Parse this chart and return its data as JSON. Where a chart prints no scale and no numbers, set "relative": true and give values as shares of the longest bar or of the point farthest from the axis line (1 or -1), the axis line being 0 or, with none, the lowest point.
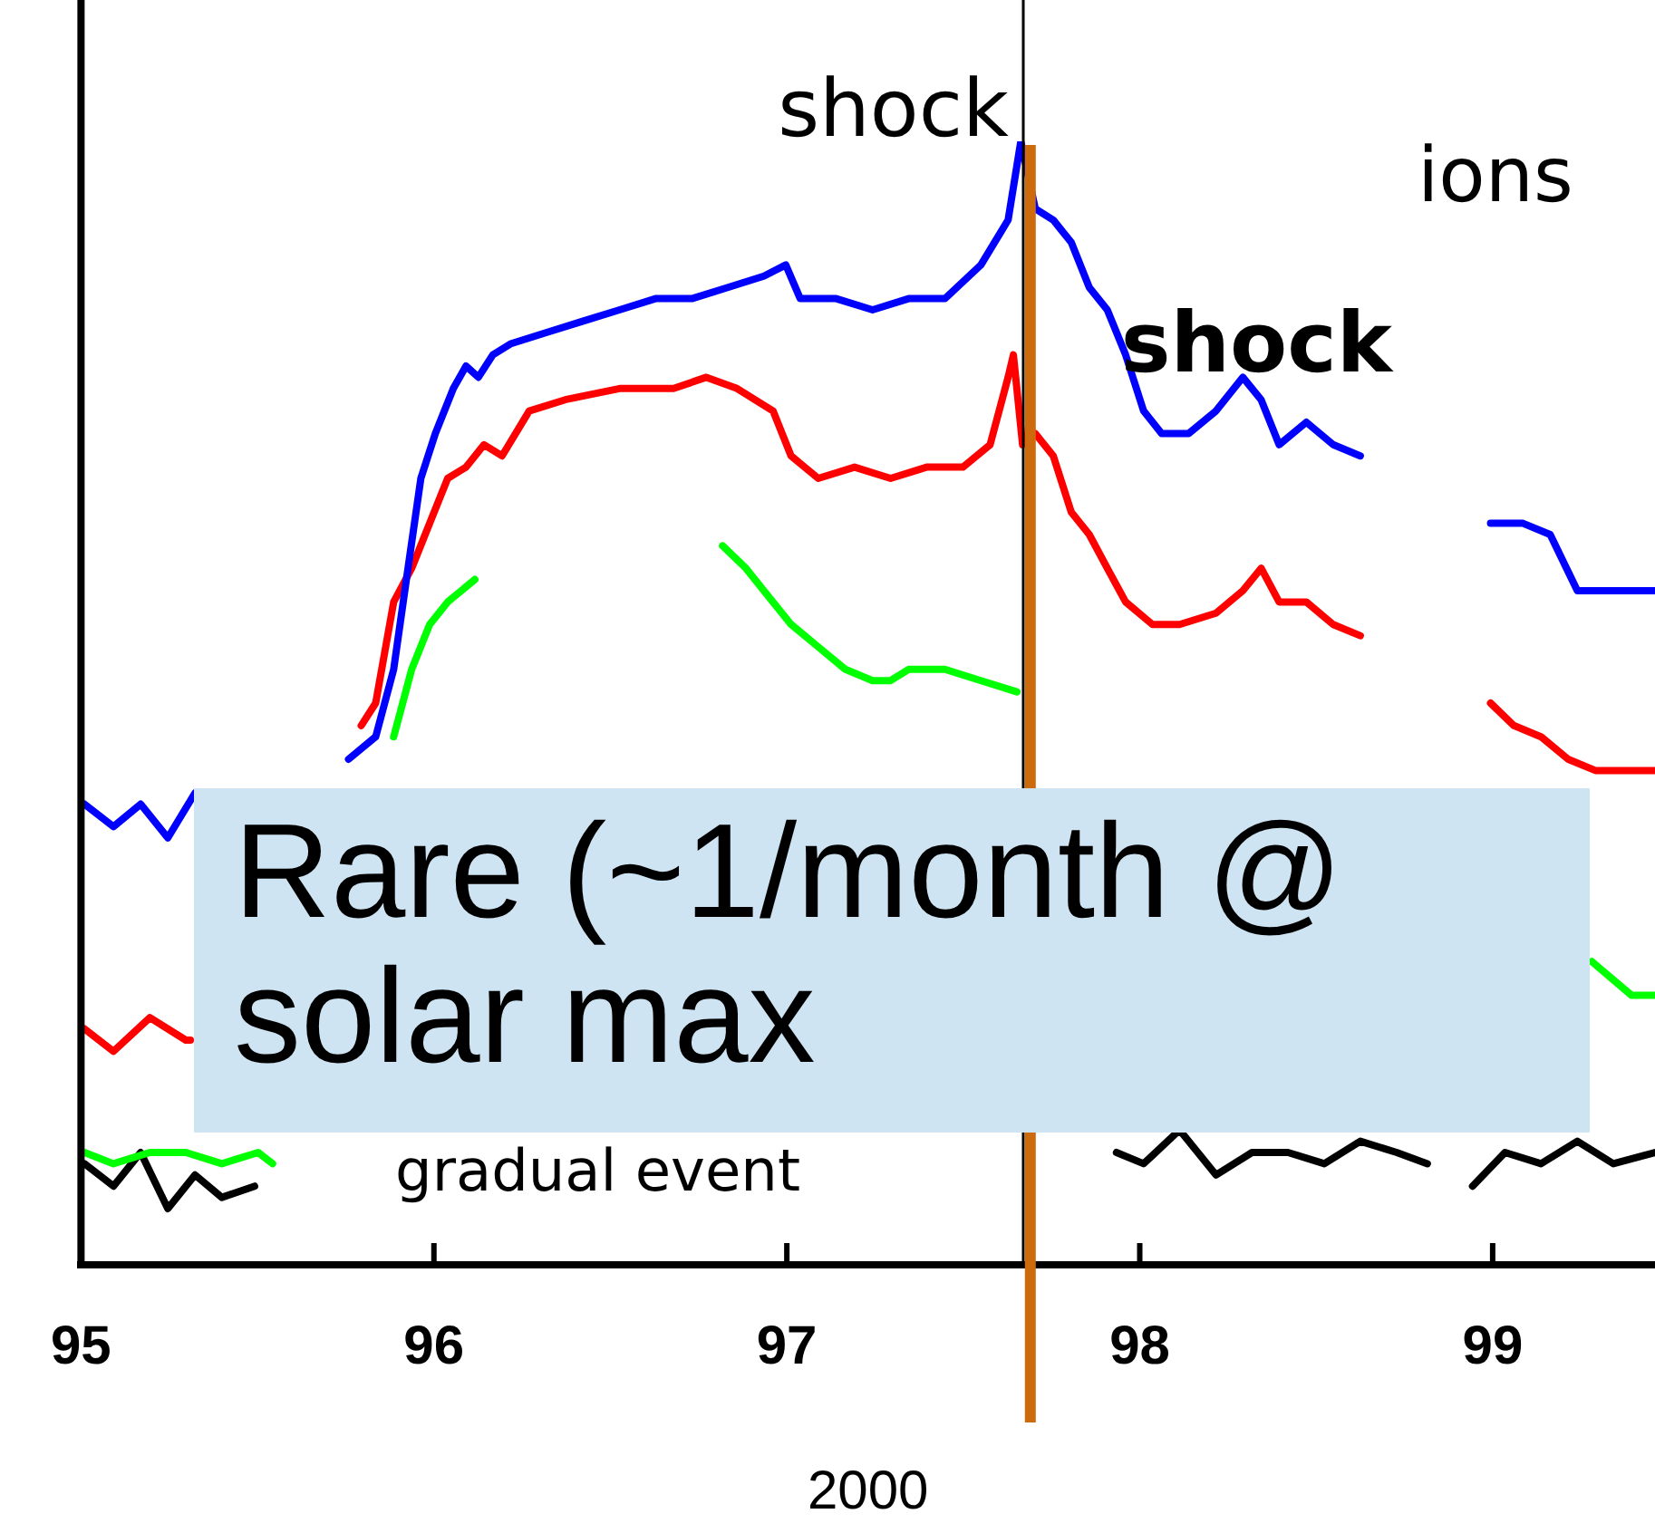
{
  "chart_data": {
    "type": "line",
    "relative": true,
    "marker": "none",
    "xlabel": "2000",
    "xlim": [
      95,
      99.46
    ],
    "xticks": [
      95,
      96,
      97,
      98,
      99
    ],
    "series": [
      {
        "color": "#0000ff",
        "x": [
          95.01,
          95.092,
          95.169,
          95.246,
          95.323,
          95.6,
          95.758,
          95.835,
          95.886,
          95.922,
          95.963,
          96.004,
          96.055,
          96.091,
          96.126,
          96.167,
          96.219,
          96.321,
          96.423,
          96.526,
          96.628,
          96.731,
          96.833,
          96.935,
          96.997,
          97.038,
          97.14,
          97.243,
          97.345,
          97.448,
          97.55,
          97.627,
          97.663,
          97.704,
          97.755,
          97.806,
          97.857,
          97.908,
          97.96,
          98.011,
          98.062,
          98.139,
          98.216,
          98.292,
          98.344,
          98.395,
          98.472,
          98.548,
          98.625,
          98.8,
          98.994,
          99.086,
          99.163,
          99.24,
          99.342,
          99.46
        ],
        "values": [
          0.41,
          0.39,
          0.41,
          0.38,
          0.42,
          null,
          0.45,
          0.47,
          0.53,
          0.61,
          0.7,
          0.74,
          0.78,
          0.8,
          0.79,
          0.81,
          0.82,
          0.83,
          0.84,
          0.85,
          0.86,
          0.86,
          0.87,
          0.88,
          0.89,
          0.86,
          0.86,
          0.85,
          0.86,
          0.86,
          0.89,
          0.93,
          1.0,
          0.94,
          0.93,
          0.91,
          0.87,
          0.85,
          0.81,
          0.76,
          0.74,
          0.74,
          0.76,
          0.79,
          0.77,
          0.73,
          0.75,
          0.73,
          0.72,
          null,
          0.66,
          0.66,
          0.65,
          0.6,
          0.6,
          0.6
        ]
      },
      {
        "color": "#ff0000",
        "x": [
          95.01,
          95.092,
          95.195,
          95.297,
          95.31,
          95.6,
          95.794,
          95.835,
          95.886,
          95.937,
          95.988,
          96.039,
          96.091,
          96.142,
          96.193,
          96.27,
          96.372,
          96.526,
          96.679,
          96.772,
          96.859,
          96.961,
          97.012,
          97.089,
          97.192,
          97.294,
          97.396,
          97.499,
          97.576,
          97.627,
          97.642,
          97.668,
          97.704,
          97.755,
          97.806,
          97.857,
          97.908,
          97.96,
          98.036,
          98.113,
          98.216,
          98.292,
          98.344,
          98.395,
          98.472,
          98.548,
          98.625,
          98.8,
          98.994,
          99.06,
          99.137,
          99.214,
          99.291,
          99.393,
          99.46
        ],
        "values": [
          0.21,
          0.19,
          0.22,
          0.2,
          0.2,
          null,
          0.48,
          0.5,
          0.59,
          0.62,
          0.66,
          0.7,
          0.71,
          0.73,
          0.72,
          0.76,
          0.77,
          0.78,
          0.78,
          0.79,
          0.78,
          0.76,
          0.72,
          0.7,
          0.71,
          0.7,
          0.71,
          0.71,
          0.73,
          0.79,
          0.81,
          0.73,
          0.74,
          0.72,
          0.67,
          0.65,
          0.62,
          0.59,
          0.57,
          0.57,
          0.58,
          0.6,
          0.62,
          0.59,
          0.59,
          0.57,
          0.56,
          null,
          0.5,
          0.48,
          0.47,
          0.45,
          0.44,
          0.44,
          0.44
        ]
      },
      {
        "color": "#00ff00",
        "x": [
          95.01,
          95.092,
          95.195,
          95.297,
          95.399,
          95.502,
          95.543,
          95.7,
          95.886,
          95.937,
          95.988,
          96.039,
          96.116,
          96.5,
          96.818,
          96.884,
          96.935,
          97.012,
          97.089,
          97.166,
          97.243,
          97.294,
          97.345,
          97.448,
          97.55,
          97.652,
          98.5,
          99.281,
          99.393,
          99.46
        ],
        "values": [
          0.1,
          0.09,
          0.1,
          0.1,
          0.09,
          0.1,
          0.09,
          null,
          0.47,
          0.53,
          0.57,
          0.59,
          0.61,
          null,
          0.64,
          0.62,
          0.6,
          0.57,
          0.55,
          0.53,
          0.52,
          0.52,
          0.53,
          0.53,
          0.52,
          0.51,
          null,
          0.27,
          0.24,
          0.24
        ]
      },
      {
        "color": "#000000",
        "x": [
          95.01,
          95.092,
          95.169,
          95.246,
          95.323,
          95.399,
          95.492,
          96.5,
          97.934,
          98.011,
          98.113,
          98.216,
          98.318,
          98.42,
          98.523,
          98.625,
          98.728,
          98.815,
          98.9,
          98.943,
          99.035,
          99.137,
          99.24,
          99.342,
          99.46
        ],
        "values": [
          0.09,
          0.07,
          0.1,
          0.05,
          0.08,
          0.06,
          0.07,
          null,
          0.1,
          0.09,
          0.12,
          0.08,
          0.1,
          0.1,
          0.09,
          0.11,
          0.1,
          0.09,
          null,
          0.07,
          0.1,
          0.09,
          0.11,
          0.09,
          0.1
        ]
      }
    ],
    "ref_lines": [
      {
        "axis": "x",
        "value": 97.67,
        "label": "shock",
        "color": "#000000"
      },
      {
        "axis": "x",
        "value": 97.69,
        "label": "shock",
        "color": "#cc6a0c"
      }
    ],
    "annotations": [
      "ions",
      "gradual event",
      "Rare (~1/month @ solar max"
    ]
  }
}
